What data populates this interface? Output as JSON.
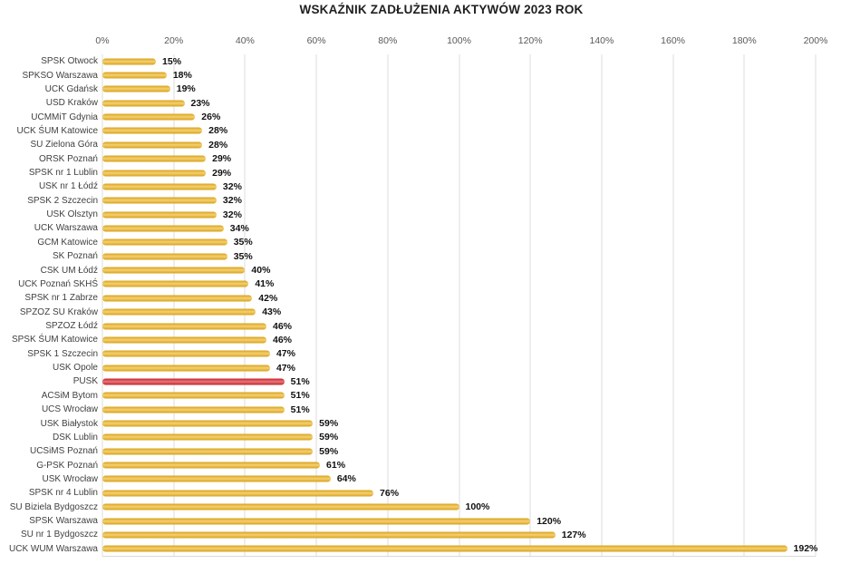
{
  "chart_data": {
    "type": "bar",
    "orientation": "horizontal",
    "title": "WSKAŹNIK ZADŁUŻENIA AKTYWÓW 2023 ROK",
    "xlabel": "",
    "ylabel": "",
    "xlim": [
      0,
      200
    ],
    "x_ticks": [
      "0%",
      "20%",
      "40%",
      "60%",
      "80%",
      "100%",
      "120%",
      "140%",
      "160%",
      "180%",
      "200%"
    ],
    "grid": true,
    "legend": false,
    "value_label_suffix": "%",
    "bar_color": "#EFB31B",
    "highlight_color": "#D8232A",
    "highlight_category": "PUSK",
    "gridline_color": "#DCDCDC",
    "categories": [
      "SPSK Otwock",
      "SPKSO Warszawa",
      "UCK Gdańsk",
      "USD Kraków",
      "UCMMiT Gdynia",
      "UCK ŚUM Katowice",
      "SU Zielona Góra",
      "ORSK Poznań",
      "SPSK nr 1 Lublin",
      "USK nr 1 Łódź",
      "SPSK 2 Szczecin",
      "USK Olsztyn",
      "UCK Warszawa",
      "GCM Katowice",
      "SK Poznań",
      "CSK UM Łódź",
      "UCK Poznań SKHŚ",
      "SPSK nr 1 Zabrze",
      "SPZOZ SU Kraków",
      "SPZOZ Łódź",
      "SPSK ŚUM Katowice",
      "SPSK 1 Szczecin",
      "USK Opole",
      "PUSK",
      "ACSiM Bytom",
      "UCS Wrocław",
      "USK Białystok",
      "DSK Lublin",
      "UCSiMS Poznań",
      "G-PSK Poznań",
      "USK Wrocław",
      "SPSK nr 4 Lublin",
      "SU Biziela Bydgoszcz",
      "SPSK Warszawa",
      "SU nr 1 Bydgoszcz",
      "UCK WUM Warszawa"
    ],
    "values": [
      15,
      18,
      19,
      23,
      26,
      28,
      28,
      29,
      29,
      32,
      32,
      32,
      34,
      35,
      35,
      40,
      41,
      42,
      43,
      46,
      46,
      47,
      47,
      51,
      51,
      51,
      59,
      59,
      59,
      61,
      64,
      76,
      100,
      120,
      127,
      192
    ]
  }
}
